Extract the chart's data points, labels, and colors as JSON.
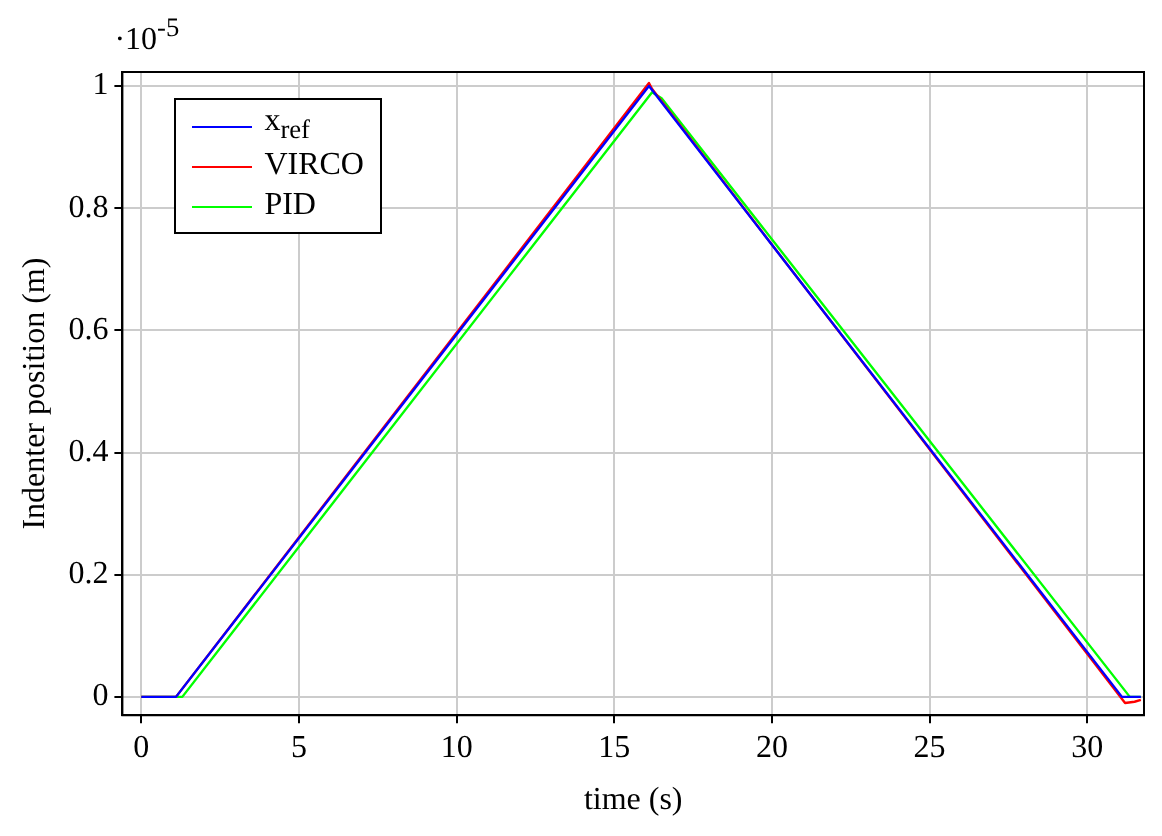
{
  "chart_data": {
    "type": "line",
    "xlabel": "time (s)",
    "ylabel": "Indenter position (m)",
    "annotations": [
      "·10$^{-5}$"
    ],
    "xlim": [
      -0.6,
      31.8
    ],
    "xticks": [
      0,
      5,
      10,
      15,
      20,
      25,
      30
    ],
    "ylim": [
      -0.03,
      1.023
    ],
    "yticks": [
      0,
      0.2,
      0.4,
      0.6,
      0.8,
      1
    ],
    "grid": true,
    "legend": "top left",
    "marker": "none",
    "line_style": "solid",
    "series": [
      {
        "name": "x$_{ref}$",
        "color": "#0000ff",
        "x": [
          0,
          1.1,
          16.1,
          31.1,
          31.7
        ],
        "values": [
          0,
          0,
          1,
          0,
          0
        ]
      },
      {
        "name": "VIRCO",
        "color": "#ff0000",
        "x": [
          0,
          1.1,
          16.1,
          16.2,
          31.2,
          31.5,
          31.7
        ],
        "values": [
          0,
          0,
          1.005,
          0.995,
          -0.01,
          -0.008,
          -0.005
        ]
      },
      {
        "name": "PID",
        "color": "#00ff00",
        "x": [
          0,
          1.3,
          16.2,
          16.5,
          31.35,
          31.7
        ],
        "values": [
          0,
          0,
          0.99,
          0.98,
          0,
          0
        ]
      }
    ]
  }
}
